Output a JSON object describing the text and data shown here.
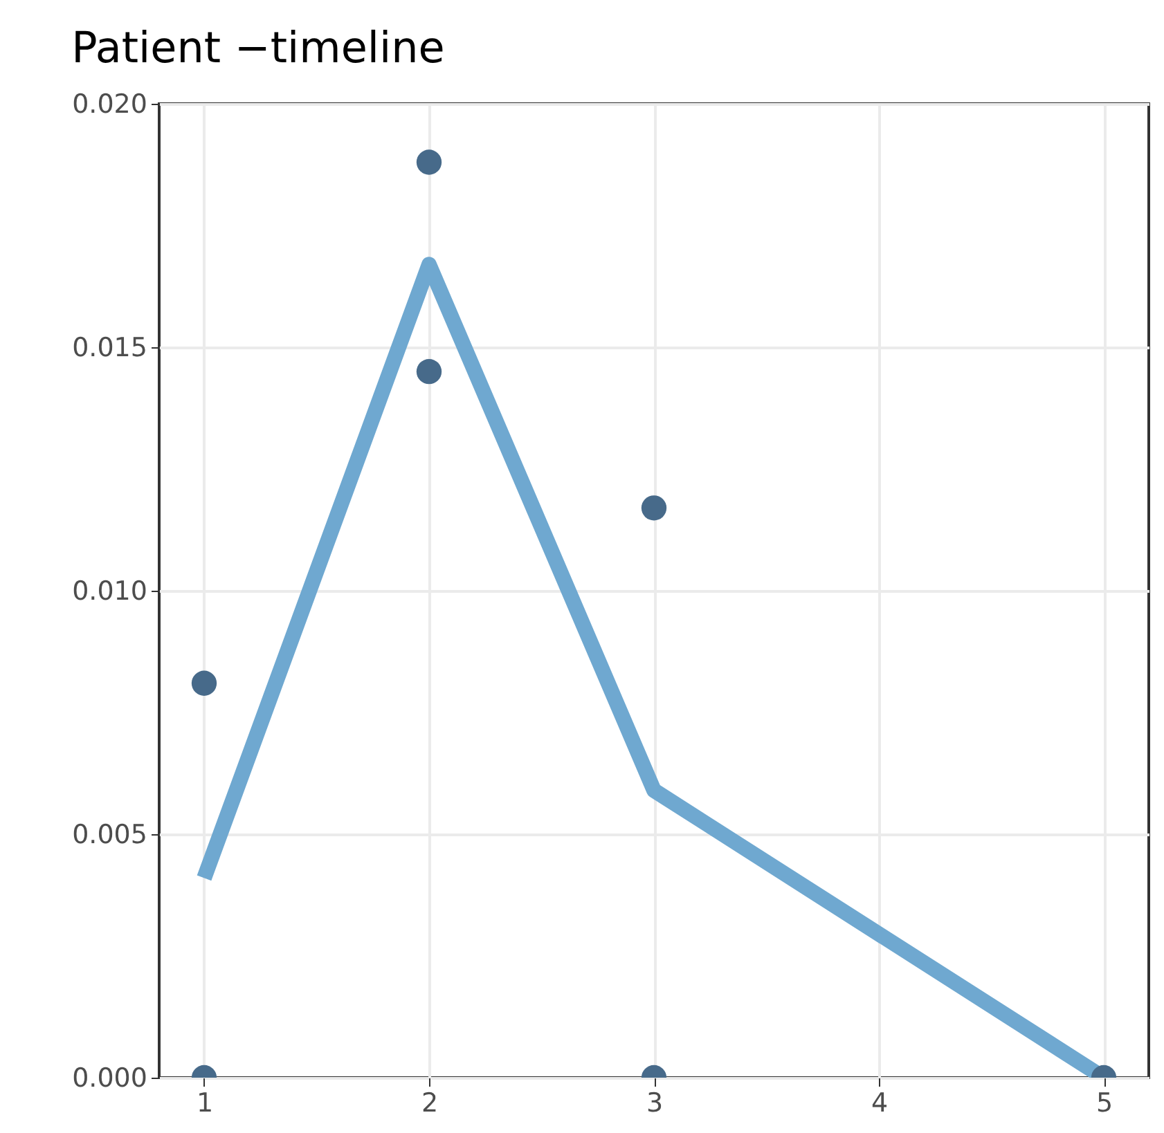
{
  "chart_data": {
    "type": "scatter",
    "title": "Patient −timeline",
    "series": [
      {
        "type": "line",
        "color": "#6fa8d0",
        "marker": "none",
        "x": [
          1,
          2,
          3,
          5
        ],
        "values": [
          0.0041,
          0.0167,
          0.0059,
          0
        ]
      },
      {
        "type": "scatter",
        "color": "#476a8a",
        "marker": "circle",
        "x": [
          1,
          1,
          2,
          2,
          3,
          3,
          5
        ],
        "values": [
          0.0081,
          0,
          0.0188,
          0.0145,
          0.0117,
          0,
          0
        ]
      }
    ],
    "xlim": [
      0.8,
      5.2
    ],
    "xticks": [
      1,
      2,
      3,
      4,
      5
    ],
    "ylim": [
      0,
      0.02
    ],
    "yticks": [
      {
        "value": 0,
        "label": "0.000"
      },
      0.005,
      {
        "value": 0.01,
        "label": "0.010"
      },
      0.015,
      {
        "value": 0.02,
        "label": "0.020"
      }
    ],
    "grid": true
  }
}
